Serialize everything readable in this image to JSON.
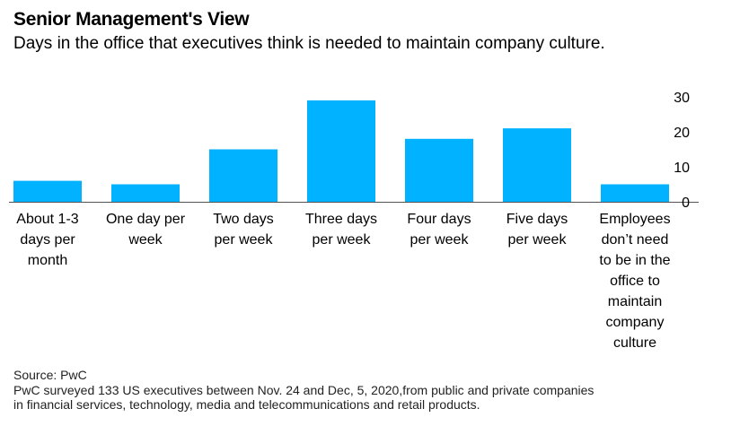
{
  "title": "Senior Management's View",
  "subtitle": "Days in the office that executives think is needed to maintain company culture.",
  "footer": {
    "source": "Source: PwC",
    "note_line1": "PwC surveyed 133 US executives between Nov. 24 and Dec, 5, 2020,from public and private companies",
    "note_line2": "in financial services, technology, media and telecommunications and retail products."
  },
  "colors": {
    "bar": "#00b2ff",
    "axis": "#555555",
    "text": "#000000"
  },
  "chart_data": {
    "type": "bar",
    "title": "Senior Management's View",
    "subtitle": "Days in the office that executives think is needed to maintain company culture.",
    "categories": [
      [
        "About 1-3",
        "days per",
        "month"
      ],
      [
        "One day per",
        "week"
      ],
      [
        "Two days",
        "per week"
      ],
      [
        "Three days",
        "per week"
      ],
      [
        "Four days",
        "per week"
      ],
      [
        "Five days",
        "per week"
      ],
      [
        "Employees",
        "don’t need",
        "to be in the",
        "office to",
        "maintain",
        "company",
        "culture"
      ]
    ],
    "values": [
      6,
      5,
      15,
      29,
      18,
      21,
      5
    ],
    "ylim": [
      0,
      30
    ],
    "yticks": [
      0,
      10,
      20,
      30
    ],
    "y_axis_position": "right",
    "grid": false,
    "xlabel": "",
    "ylabel": ""
  }
}
